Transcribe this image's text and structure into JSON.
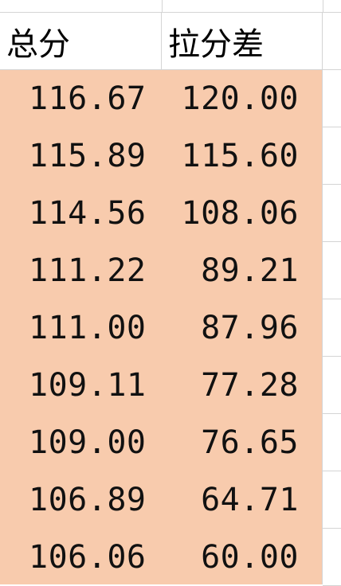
{
  "sheet": {
    "headers": [
      "总分",
      "拉分差",
      ""
    ],
    "rows": [
      {
        "total": "116.67",
        "gap": "120.00"
      },
      {
        "total": "115.89",
        "gap": "115.60"
      },
      {
        "total": "114.56",
        "gap": "108.06"
      },
      {
        "total": "111.22",
        "gap": "89.21"
      },
      {
        "total": "111.00",
        "gap": "87.96"
      },
      {
        "total": "109.11",
        "gap": "77.28"
      },
      {
        "total": "109.00",
        "gap": "76.65"
      },
      {
        "total": "106.89",
        "gap": "64.71"
      },
      {
        "total": "106.06",
        "gap": "60.00"
      }
    ],
    "fill_color": "#f8cbad",
    "grid_color": "#d4d4d4"
  }
}
